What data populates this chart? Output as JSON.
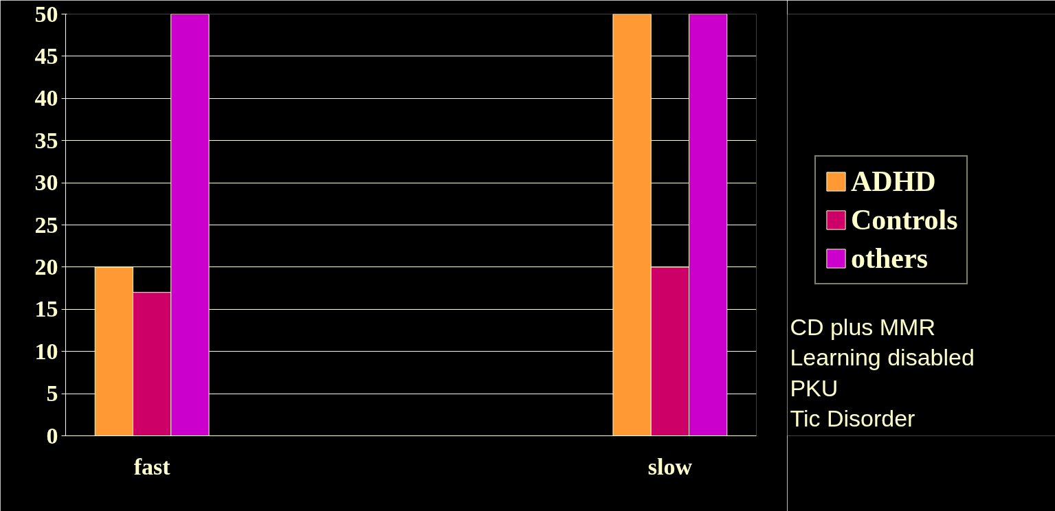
{
  "chart_data": {
    "type": "bar",
    "categories": [
      "fast",
      null,
      null,
      "slow"
    ],
    "series": [
      {
        "name": "ADHD",
        "color": "#ff9933",
        "values": [
          20,
          null,
          null,
          50
        ]
      },
      {
        "name": "Controls",
        "color": "#cc0066",
        "values": [
          17,
          null,
          null,
          20
        ]
      },
      {
        "name": "others",
        "color": "#cc00cc",
        "values": [
          50,
          null,
          null,
          50
        ]
      }
    ],
    "ylim": [
      0,
      50
    ],
    "yticks": [
      0,
      5,
      10,
      15,
      20,
      25,
      30,
      35,
      40,
      45,
      50
    ],
    "grid": "y",
    "legend": "right",
    "annotations": [
      "CD plus MMR",
      "Learning disabled",
      "PKU",
      "Tic Disorder"
    ]
  }
}
